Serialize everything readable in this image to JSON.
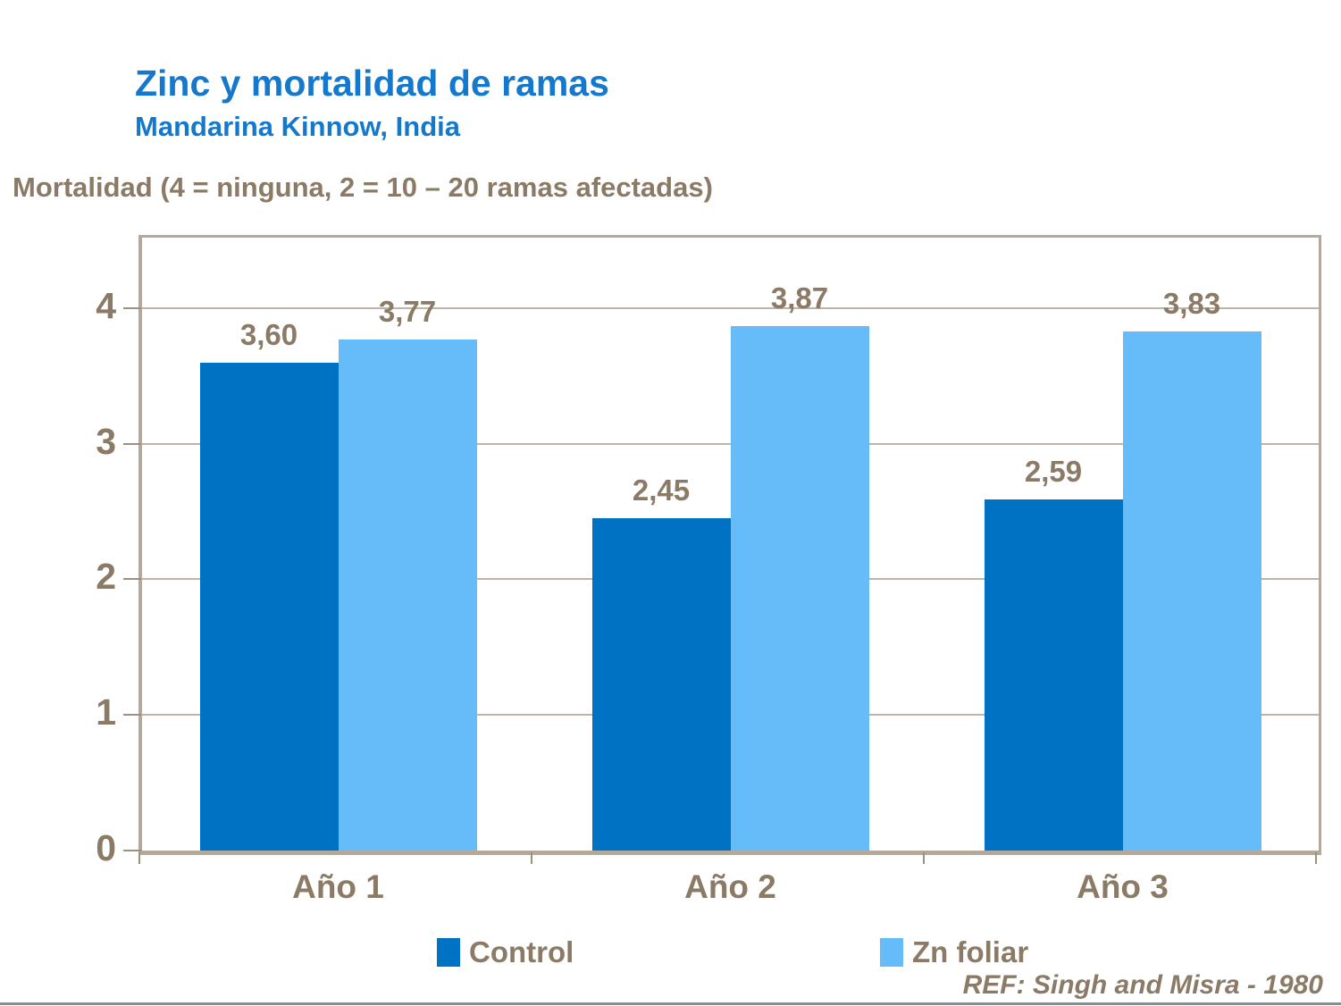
{
  "title": "Zinc y mortalidad de ramas",
  "subtitle": "Mandarina Kinnow, India",
  "axis_caption": "Mortalidad (4 = ninguna, 2 = 10 – 20 ramas afectadas)",
  "reference": "REF: Singh and Misra - 1980",
  "colors": {
    "title_blue": "#1478CC",
    "text_brown": "#8A7A66",
    "frame_tan": "#B2A99C",
    "gridline": "#BDB4A8",
    "control_bar": "#0072C4",
    "zn_foliar_bar": "#65BCF9",
    "bottom_rule_gray": "#848E95"
  },
  "chart_data": {
    "type": "bar",
    "categories": [
      "Año 1",
      "Año 2",
      "Año 3"
    ],
    "series": [
      {
        "name": "Control",
        "color": "#0072C4",
        "values": [
          3.6,
          2.45,
          2.59
        ],
        "value_labels": [
          "3,60",
          "2,45",
          "2,59"
        ]
      },
      {
        "name": "Zn foliar",
        "color": "#65BCF9",
        "values": [
          3.77,
          3.87,
          3.83
        ],
        "value_labels": [
          "3,77",
          "3,87",
          "3,83"
        ]
      }
    ],
    "title": "Zinc y mortalidad de ramas",
    "xlabel": "",
    "ylabel": "Mortalidad (4 = ninguna, 2 = 10 – 20 ramas afectadas)",
    "ylim": [
      0,
      4.52
    ],
    "yticks": [
      0,
      1,
      2,
      3,
      4
    ],
    "grid": true,
    "legend_position": "bottom"
  },
  "legend": {
    "items": [
      {
        "label": "Control",
        "color": "#0072C4"
      },
      {
        "label": "Zn foliar",
        "color": "#65BCF9"
      }
    ]
  }
}
